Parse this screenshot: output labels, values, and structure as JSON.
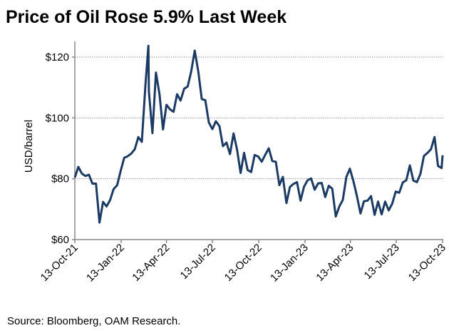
{
  "chart_data": {
    "type": "line",
    "title": "Price of Oil Rose 5.9% Last Week",
    "xlabel": "",
    "ylabel": "USD/barrel",
    "ylim": [
      60,
      120
    ],
    "xlim": [
      "2021-10-13",
      "2023-10-13"
    ],
    "yticks": [
      60,
      80,
      100,
      120
    ],
    "ytick_labels": [
      "$60",
      "$80",
      "$100",
      "$120"
    ],
    "xticks": [
      "2021-10-13",
      "2022-01-13",
      "2022-04-13",
      "2022-07-13",
      "2022-10-13",
      "2023-01-13",
      "2023-04-13",
      "2023-07-13",
      "2023-10-13"
    ],
    "xtick_labels": [
      "13-Oct-21",
      "13-Jan-22",
      "13-Apr-22",
      "13-Jul-22",
      "13-Oct-22",
      "13-Jan-23",
      "13-Apr-23",
      "13-Jul-23",
      "13-Oct-23"
    ],
    "grid": "horizontal dotted at 80, 100, 120",
    "legend": "none",
    "line_color": "#1B3A64",
    "series": [
      {
        "x": [
          "2021-10-13",
          "2021-10-20",
          "2021-10-27",
          "2021-11-03",
          "2021-11-10",
          "2021-11-17",
          "2021-11-24",
          "2021-12-01",
          "2021-12-08",
          "2021-12-15",
          "2021-12-22",
          "2021-12-29",
          "2022-01-05",
          "2022-01-12",
          "2022-01-19",
          "2022-01-26",
          "2022-02-02",
          "2022-02-09",
          "2022-02-16",
          "2022-02-23",
          "2022-03-02",
          "2022-03-08",
          "2022-03-09",
          "2022-03-16",
          "2022-03-23",
          "2022-03-30",
          "2022-04-06",
          "2022-04-13",
          "2022-04-20",
          "2022-04-27",
          "2022-05-04",
          "2022-05-11",
          "2022-05-18",
          "2022-05-25",
          "2022-06-01",
          "2022-06-08",
          "2022-06-15",
          "2022-06-22",
          "2022-06-29",
          "2022-07-06",
          "2022-07-13",
          "2022-07-20",
          "2022-07-27",
          "2022-08-03",
          "2022-08-10",
          "2022-08-17",
          "2022-08-24",
          "2022-08-31",
          "2022-09-07",
          "2022-09-14",
          "2022-09-21",
          "2022-09-28",
          "2022-10-05",
          "2022-10-12",
          "2022-10-19",
          "2022-10-26",
          "2022-11-02",
          "2022-11-09",
          "2022-11-16",
          "2022-11-23",
          "2022-11-30",
          "2022-12-07",
          "2022-12-14",
          "2022-12-21",
          "2022-12-28",
          "2023-01-04",
          "2023-01-11",
          "2023-01-18",
          "2023-01-25",
          "2023-02-01",
          "2023-02-08",
          "2023-02-15",
          "2023-02-22",
          "2023-03-01",
          "2023-03-08",
          "2023-03-15",
          "2023-03-22",
          "2023-03-29",
          "2023-04-05",
          "2023-04-12",
          "2023-04-19",
          "2023-04-26",
          "2023-05-03",
          "2023-05-10",
          "2023-05-17",
          "2023-05-24",
          "2023-05-31",
          "2023-06-07",
          "2023-06-14",
          "2023-06-21",
          "2023-06-28",
          "2023-07-05",
          "2023-07-12",
          "2023-07-19",
          "2023-07-26",
          "2023-08-02",
          "2023-08-09",
          "2023-08-16",
          "2023-08-23",
          "2023-08-30",
          "2023-09-06",
          "2023-09-13",
          "2023-09-20",
          "2023-09-27",
          "2023-10-04",
          "2023-10-11",
          "2023-10-13"
        ],
        "y": [
          80.4,
          83.9,
          81.7,
          80.9,
          81.3,
          78.4,
          78.4,
          65.6,
          72.4,
          70.9,
          73.0,
          76.6,
          77.9,
          82.6,
          86.9,
          87.4,
          88.3,
          89.7,
          93.7,
          92.1,
          110.6,
          123.7,
          108.7,
          95.0,
          114.9,
          107.8,
          96.2,
          104.3,
          102.8,
          102.0,
          107.8,
          105.7,
          109.6,
          110.3,
          115.3,
          122.1,
          115.3,
          106.2,
          105.8,
          98.5,
          96.3,
          98.9,
          97.3,
          90.7,
          91.9,
          88.1,
          94.9,
          89.6,
          81.9,
          88.5,
          82.9,
          82.2,
          87.8,
          87.3,
          85.6,
          87.9,
          90.0,
          85.8,
          85.6,
          77.9,
          80.6,
          72.0,
          77.3,
          78.3,
          78.9,
          72.8,
          77.4,
          79.5,
          80.1,
          76.4,
          78.5,
          78.6,
          74.0,
          77.7,
          76.7,
          67.6,
          70.9,
          73.0,
          80.6,
          83.3,
          79.2,
          74.3,
          68.6,
          72.6,
          72.8,
          74.3,
          68.1,
          72.5,
          68.3,
          72.5,
          69.6,
          71.8,
          75.8,
          75.4,
          78.8,
          79.5,
          84.4,
          79.4,
          78.9,
          81.6,
          87.5,
          88.5,
          89.7,
          93.7,
          84.2,
          83.5,
          87.7
        ]
      }
    ]
  },
  "footer": {
    "source": "Source: Bloomberg, OAM Research."
  }
}
